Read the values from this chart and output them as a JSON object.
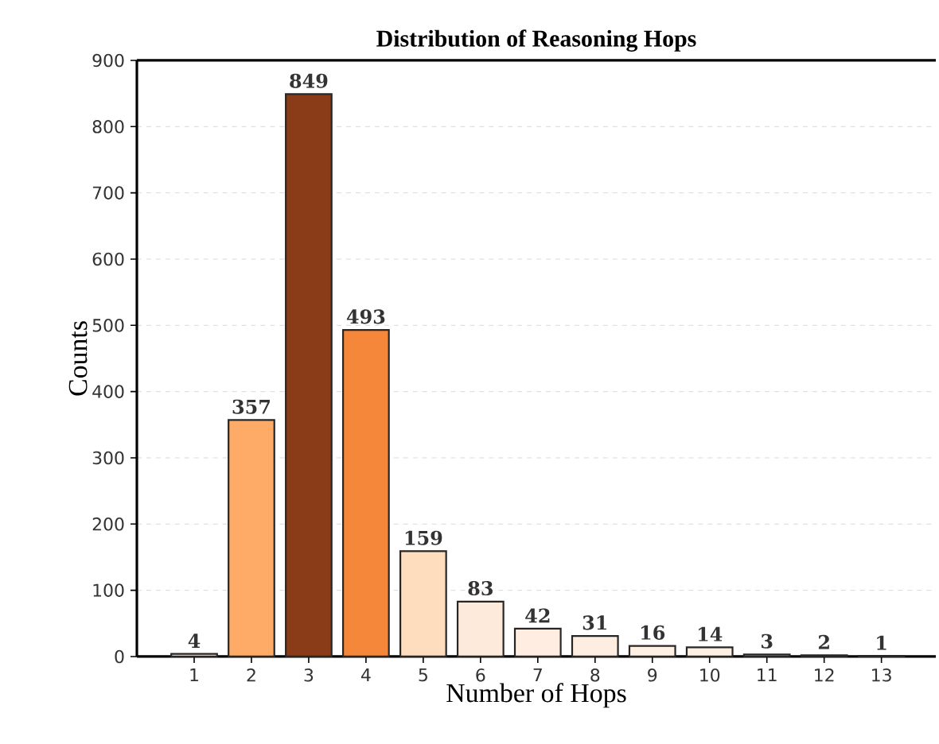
{
  "chart_data": {
    "type": "bar",
    "title": "Distribution of Reasoning Hops",
    "xlabel": "Number of Hops",
    "ylabel": "Counts",
    "categories": [
      "1",
      "2",
      "3",
      "4",
      "5",
      "6",
      "7",
      "8",
      "9",
      "10",
      "11",
      "12",
      "13"
    ],
    "values": [
      4,
      357,
      849,
      493,
      159,
      83,
      42,
      31,
      16,
      14,
      3,
      2,
      1
    ],
    "colors": [
      "#fff5eb",
      "#fdab67",
      "#8a3c18",
      "#f5873a",
      "#fdddbd",
      "#feeada",
      "#feede0",
      "#feeee1",
      "#fff0e4",
      "#fff0e4",
      "#fff5eb",
      "#fff5eb",
      "#fff5eb"
    ],
    "ylim": [
      0,
      900
    ],
    "yticks": [
      0,
      100,
      200,
      300,
      400,
      500,
      600,
      700,
      800,
      900
    ],
    "grid": "y",
    "data_labels": true
  }
}
